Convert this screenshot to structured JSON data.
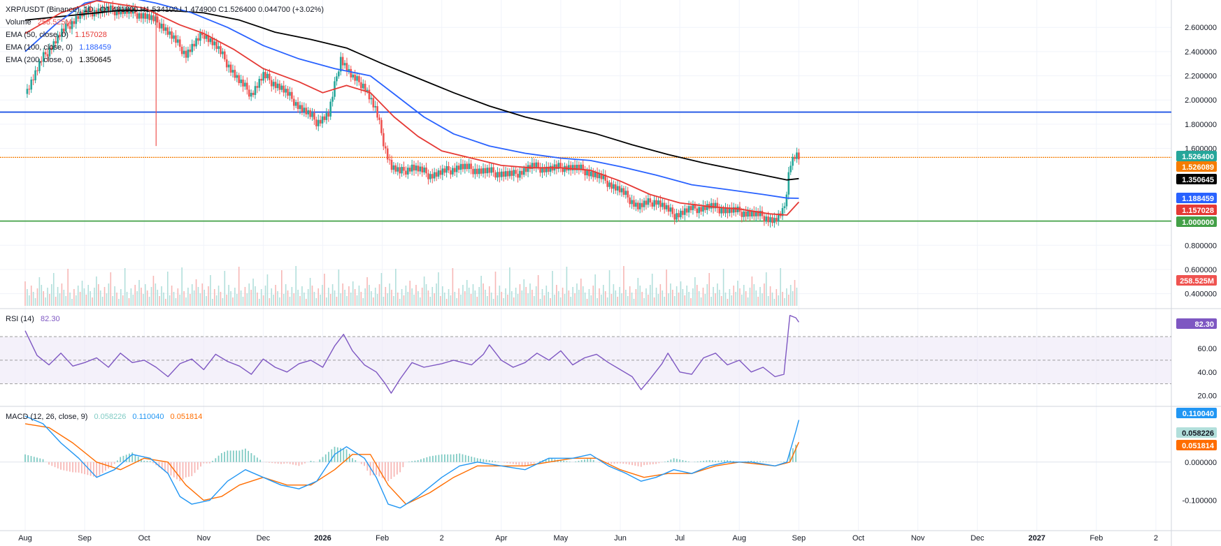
{
  "legend": {
    "title": "XRP/USDT (Binance), 1D",
    "ohlc": "O1.481800  H1.534100  L1.474900  C1.526400  0.044700 (+3.02%)",
    "volume_label": "Volume",
    "volume_value": "258.525M",
    "ema50_label": "EMA (50, close, 0)",
    "ema50_value": "1.157028",
    "ema100_label": "EMA (100, close, 0)",
    "ema100_value": "1.188459",
    "ema200_label": "EMA (200, close, 0)",
    "ema200_value": "1.350645",
    "rsi_label": "RSI (14)",
    "rsi_value": "82.30",
    "macd_label": "MACD (12, 26, close, 9)",
    "macd_hist": "0.058226",
    "macd_line": "0.110040",
    "macd_signal": "0.051814"
  },
  "colors": {
    "up": "#26a69a",
    "down": "#ef5350",
    "ema50": "#e53935",
    "ema100": "#2962ff",
    "ema200": "#000000",
    "hline_blue": "#1e53e5",
    "hline_orange": "#f57c00",
    "hline_green": "#43a047",
    "rsi": "#7e57c2",
    "macd": "#2196f3",
    "signal": "#ff6d00"
  },
  "chart_data": [
    {
      "type": "candlestick",
      "title": "XRP/USDT (Binance), 1D",
      "price_ticks": [
        "2.600000",
        "2.400000",
        "2.200000",
        "2.000000",
        "1.800000",
        "1.600000",
        "0.800000",
        "0.600000",
        "0.400000"
      ],
      "price_tick_values": [
        2.6,
        2.4,
        2.2,
        2.0,
        1.8,
        1.6,
        0.8,
        0.6,
        0.4
      ],
      "x_labels": [
        "Aug",
        "Sep",
        "Oct",
        "Nov",
        "Dec",
        "2026",
        "Feb",
        "2",
        "Apr",
        "May",
        "Jun",
        "Jul",
        "Aug",
        "Sep",
        "Oct",
        "Nov",
        "Dec",
        "2027",
        "Feb",
        "2"
      ],
      "x_label_months": [
        0,
        1,
        2,
        3,
        4,
        5,
        6,
        7,
        8,
        9,
        10,
        11,
        12,
        13,
        14,
        15,
        16,
        17,
        18,
        19
      ],
      "ylim": [
        0.3,
        2.78
      ],
      "horizontal_levels": [
        {
          "value": 1.9,
          "label": "1.900000",
          "color": "#1e53e5"
        },
        {
          "value": 1.526089,
          "label": "1.526089",
          "color": "#f57c00"
        },
        {
          "value": 1.0,
          "label": "1.000000",
          "color": "#43a047"
        }
      ],
      "badges": [
        {
          "value": 1.5264,
          "label": "1.526400",
          "color": "#26a69a"
        },
        {
          "value": 1.526089,
          "label": "1.526089",
          "color": "#f57c00"
        },
        {
          "value": 1.350645,
          "label": "1.350645",
          "color": "#000000"
        },
        {
          "value": 1.188459,
          "label": "1.188459",
          "color": "#2962ff"
        },
        {
          "value": 1.157028,
          "label": "1.157028",
          "color": "#e53935"
        },
        {
          "value": 1.0,
          "label": "1.000000",
          "color": "#43a047"
        }
      ],
      "volume_badge": {
        "label": "258.525M",
        "color": "#ef5350"
      },
      "close_series": [
        [
          0.0,
          2.05
        ],
        [
          0.3,
          2.35
        ],
        [
          0.6,
          2.55
        ],
        [
          0.9,
          2.7
        ],
        [
          1.2,
          2.74
        ],
        [
          1.6,
          2.74
        ],
        [
          2.0,
          2.7
        ],
        [
          2.3,
          2.62
        ],
        [
          2.5,
          2.5
        ],
        [
          2.7,
          2.38
        ],
        [
          3.0,
          2.55
        ],
        [
          3.2,
          2.45
        ],
        [
          3.4,
          2.3
        ],
        [
          3.6,
          2.15
        ],
        [
          3.8,
          2.05
        ],
        [
          4.0,
          2.2
        ],
        [
          4.3,
          2.1
        ],
        [
          4.6,
          1.95
        ],
        [
          4.9,
          1.82
        ],
        [
          5.1,
          1.88
        ],
        [
          5.3,
          2.35
        ],
        [
          5.5,
          2.18
        ],
        [
          5.7,
          2.12
        ],
        [
          5.9,
          1.9
        ],
        [
          6.05,
          1.6
        ],
        [
          6.15,
          1.45
        ],
        [
          6.3,
          1.4
        ],
        [
          6.5,
          1.45
        ],
        [
          6.8,
          1.38
        ],
        [
          7.0,
          1.4
        ],
        [
          7.3,
          1.45
        ],
        [
          7.6,
          1.42
        ],
        [
          7.9,
          1.4
        ],
        [
          8.2,
          1.38
        ],
        [
          8.5,
          1.45
        ],
        [
          8.8,
          1.43
        ],
        [
          9.1,
          1.45
        ],
        [
          9.4,
          1.42
        ],
        [
          9.7,
          1.35
        ],
        [
          10.0,
          1.25
        ],
        [
          10.3,
          1.12
        ],
        [
          10.6,
          1.17
        ],
        [
          10.9,
          1.05
        ],
        [
          11.2,
          1.1
        ],
        [
          11.5,
          1.12
        ],
        [
          11.8,
          1.09
        ],
        [
          12.1,
          1.07
        ],
        [
          12.4,
          1.04
        ],
        [
          12.6,
          1.0
        ],
        [
          12.75,
          1.08
        ],
        [
          12.85,
          1.48
        ],
        [
          12.95,
          1.55
        ],
        [
          13.0,
          1.526
        ]
      ],
      "ema50": [
        [
          0.0,
          2.55
        ],
        [
          0.6,
          2.72
        ],
        [
          1.2,
          2.82
        ],
        [
          2.0,
          2.76
        ],
        [
          2.6,
          2.62
        ],
        [
          3.0,
          2.55
        ],
        [
          3.5,
          2.42
        ],
        [
          4.0,
          2.26
        ],
        [
          4.6,
          2.15
        ],
        [
          5.0,
          2.06
        ],
        [
          5.4,
          2.12
        ],
        [
          5.8,
          2.06
        ],
        [
          6.2,
          1.86
        ],
        [
          6.6,
          1.7
        ],
        [
          7.0,
          1.58
        ],
        [
          7.5,
          1.52
        ],
        [
          8.0,
          1.46
        ],
        [
          8.5,
          1.44
        ],
        [
          9.0,
          1.44
        ],
        [
          9.5,
          1.42
        ],
        [
          10.0,
          1.33
        ],
        [
          10.5,
          1.22
        ],
        [
          11.0,
          1.15
        ],
        [
          11.5,
          1.12
        ],
        [
          12.0,
          1.1
        ],
        [
          12.5,
          1.06
        ],
        [
          12.8,
          1.05
        ],
        [
          13.0,
          1.157
        ]
      ],
      "ema100": [
        [
          0.0,
          2.4
        ],
        [
          0.5,
          2.62
        ],
        [
          1.0,
          2.8
        ],
        [
          1.6,
          2.86
        ],
        [
          2.2,
          2.8
        ],
        [
          2.8,
          2.72
        ],
        [
          3.4,
          2.6
        ],
        [
          4.0,
          2.45
        ],
        [
          4.6,
          2.34
        ],
        [
          5.2,
          2.26
        ],
        [
          5.8,
          2.2
        ],
        [
          6.2,
          2.05
        ],
        [
          6.7,
          1.86
        ],
        [
          7.2,
          1.72
        ],
        [
          7.8,
          1.62
        ],
        [
          8.4,
          1.56
        ],
        [
          9.0,
          1.52
        ],
        [
          9.5,
          1.5
        ],
        [
          10.0,
          1.45
        ],
        [
          10.6,
          1.38
        ],
        [
          11.2,
          1.3
        ],
        [
          11.8,
          1.26
        ],
        [
          12.4,
          1.22
        ],
        [
          12.8,
          1.19
        ],
        [
          13.0,
          1.188
        ]
      ],
      "ema200": [
        [
          0.0,
          2.66
        ],
        [
          0.8,
          2.7
        ],
        [
          1.6,
          2.74
        ],
        [
          2.4,
          2.74
        ],
        [
          3.0,
          2.72
        ],
        [
          3.6,
          2.66
        ],
        [
          4.2,
          2.56
        ],
        [
          4.8,
          2.5
        ],
        [
          5.4,
          2.43
        ],
        [
          6.0,
          2.3
        ],
        [
          6.6,
          2.18
        ],
        [
          7.2,
          2.06
        ],
        [
          7.8,
          1.95
        ],
        [
          8.4,
          1.86
        ],
        [
          9.0,
          1.79
        ],
        [
          9.6,
          1.72
        ],
        [
          10.2,
          1.63
        ],
        [
          10.8,
          1.55
        ],
        [
          11.4,
          1.48
        ],
        [
          12.0,
          1.42
        ],
        [
          12.5,
          1.37
        ],
        [
          12.8,
          1.34
        ],
        [
          13.0,
          1.3506
        ]
      ]
    },
    {
      "type": "line",
      "title": "RSI (14)",
      "ticks": [
        "60.00",
        "40.00",
        "20.00"
      ],
      "tick_values": [
        60,
        40,
        20
      ],
      "bands": [
        70,
        50,
        30
      ],
      "ylim": [
        12,
        92
      ],
      "series": [
        [
          0.0,
          75
        ],
        [
          0.2,
          54
        ],
        [
          0.4,
          46
        ],
        [
          0.6,
          56
        ],
        [
          0.8,
          45
        ],
        [
          1.0,
          48
        ],
        [
          1.2,
          52
        ],
        [
          1.4,
          44
        ],
        [
          1.6,
          56
        ],
        [
          1.8,
          48
        ],
        [
          2.0,
          50
        ],
        [
          2.2,
          44
        ],
        [
          2.4,
          36
        ],
        [
          2.6,
          47
        ],
        [
          2.8,
          51
        ],
        [
          3.0,
          42
        ],
        [
          3.2,
          55
        ],
        [
          3.4,
          49
        ],
        [
          3.6,
          45
        ],
        [
          3.8,
          38
        ],
        [
          4.0,
          51
        ],
        [
          4.2,
          44
        ],
        [
          4.4,
          40
        ],
        [
          4.6,
          47
        ],
        [
          4.8,
          50
        ],
        [
          5.0,
          44
        ],
        [
          5.2,
          62
        ],
        [
          5.35,
          72
        ],
        [
          5.5,
          58
        ],
        [
          5.7,
          46
        ],
        [
          5.9,
          40
        ],
        [
          6.05,
          30
        ],
        [
          6.15,
          22
        ],
        [
          6.3,
          34
        ],
        [
          6.5,
          48
        ],
        [
          6.7,
          44
        ],
        [
          7.0,
          47
        ],
        [
          7.2,
          50
        ],
        [
          7.5,
          46
        ],
        [
          7.7,
          55
        ],
        [
          7.8,
          63
        ],
        [
          8.0,
          50
        ],
        [
          8.2,
          44
        ],
        [
          8.4,
          48
        ],
        [
          8.6,
          56
        ],
        [
          8.8,
          50
        ],
        [
          9.0,
          58
        ],
        [
          9.2,
          46
        ],
        [
          9.4,
          52
        ],
        [
          9.6,
          55
        ],
        [
          9.8,
          48
        ],
        [
          10.0,
          42
        ],
        [
          10.2,
          36
        ],
        [
          10.35,
          25
        ],
        [
          10.5,
          34
        ],
        [
          10.7,
          47
        ],
        [
          10.8,
          56
        ],
        [
          11.0,
          40
        ],
        [
          11.2,
          38
        ],
        [
          11.4,
          52
        ],
        [
          11.6,
          56
        ],
        [
          11.8,
          46
        ],
        [
          12.0,
          50
        ],
        [
          12.2,
          40
        ],
        [
          12.4,
          44
        ],
        [
          12.6,
          36
        ],
        [
          12.75,
          38
        ],
        [
          12.85,
          88
        ],
        [
          12.95,
          86
        ],
        [
          13.0,
          82.3
        ]
      ]
    },
    {
      "type": "line",
      "title": "MACD (12, 26, close, 9)",
      "ticks": [
        "0.000000",
        "-0.100000"
      ],
      "tick_values": [
        0.0,
        -0.1
      ],
      "ylim": [
        -0.17,
        0.14
      ],
      "macd": [
        [
          0.0,
          0.12
        ],
        [
          0.3,
          0.1
        ],
        [
          0.6,
          0.05
        ],
        [
          0.9,
          0.01
        ],
        [
          1.2,
          -0.04
        ],
        [
          1.5,
          -0.02
        ],
        [
          1.8,
          0.02
        ],
        [
          2.1,
          0.01
        ],
        [
          2.4,
          -0.03
        ],
        [
          2.6,
          -0.09
        ],
        [
          2.8,
          -0.11
        ],
        [
          3.1,
          -0.1
        ],
        [
          3.4,
          -0.05
        ],
        [
          3.7,
          -0.02
        ],
        [
          4.0,
          -0.04
        ],
        [
          4.3,
          -0.06
        ],
        [
          4.6,
          -0.07
        ],
        [
          4.9,
          -0.05
        ],
        [
          5.2,
          0.02
        ],
        [
          5.4,
          0.04
        ],
        [
          5.7,
          0.01
        ],
        [
          5.9,
          -0.04
        ],
        [
          6.1,
          -0.11
        ],
        [
          6.3,
          -0.12
        ],
        [
          6.6,
          -0.09
        ],
        [
          7.0,
          -0.04
        ],
        [
          7.3,
          -0.01
        ],
        [
          7.6,
          0.0
        ],
        [
          8.0,
          -0.01
        ],
        [
          8.4,
          -0.02
        ],
        [
          8.8,
          0.01
        ],
        [
          9.2,
          0.01
        ],
        [
          9.5,
          0.02
        ],
        [
          9.8,
          -0.01
        ],
        [
          10.1,
          -0.03
        ],
        [
          10.35,
          -0.05
        ],
        [
          10.6,
          -0.04
        ],
        [
          10.9,
          -0.02
        ],
        [
          11.2,
          -0.03
        ],
        [
          11.5,
          -0.01
        ],
        [
          11.8,
          0.0
        ],
        [
          12.2,
          0.0
        ],
        [
          12.6,
          -0.01
        ],
        [
          12.8,
          0.0
        ],
        [
          12.95,
          0.08
        ],
        [
          13.0,
          0.11
        ]
      ],
      "signal": [
        [
          0.0,
          0.1
        ],
        [
          0.4,
          0.09
        ],
        [
          0.8,
          0.05
        ],
        [
          1.2,
          0.0
        ],
        [
          1.6,
          -0.02
        ],
        [
          2.0,
          0.01
        ],
        [
          2.4,
          0.0
        ],
        [
          2.7,
          -0.06
        ],
        [
          3.0,
          -0.1
        ],
        [
          3.3,
          -0.09
        ],
        [
          3.6,
          -0.06
        ],
        [
          4.0,
          -0.04
        ],
        [
          4.4,
          -0.06
        ],
        [
          4.8,
          -0.06
        ],
        [
          5.2,
          -0.02
        ],
        [
          5.5,
          0.02
        ],
        [
          5.8,
          0.02
        ],
        [
          6.1,
          -0.06
        ],
        [
          6.4,
          -0.11
        ],
        [
          6.8,
          -0.08
        ],
        [
          7.2,
          -0.04
        ],
        [
          7.6,
          -0.01
        ],
        [
          8.0,
          -0.01
        ],
        [
          8.4,
          -0.01
        ],
        [
          8.8,
          0.0
        ],
        [
          9.2,
          0.01
        ],
        [
          9.6,
          0.01
        ],
        [
          10.0,
          -0.02
        ],
        [
          10.4,
          -0.04
        ],
        [
          10.8,
          -0.03
        ],
        [
          11.2,
          -0.03
        ],
        [
          11.6,
          -0.01
        ],
        [
          12.0,
          0.0
        ],
        [
          12.6,
          -0.01
        ],
        [
          12.85,
          0.0
        ],
        [
          13.0,
          0.052
        ]
      ],
      "hist_peak": [
        0.0,
        0.08
      ]
    }
  ],
  "badges_small": {
    "rsi": {
      "label": "82.30",
      "color": "#7e57c2"
    },
    "macd_line": {
      "label": "0.110040",
      "color": "#2196f3"
    },
    "macd_hist": {
      "label": "0.058226",
      "color": "#b2dfdb",
      "text": "#131722"
    },
    "macd_signal": {
      "label": "0.051814",
      "color": "#ff6d00"
    }
  }
}
